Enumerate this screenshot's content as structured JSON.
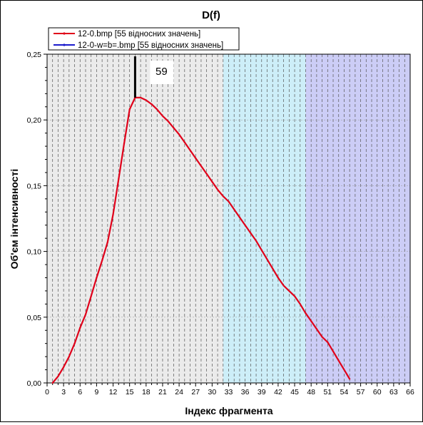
{
  "chart_data": {
    "type": "line",
    "title": "D(f)",
    "xlabel": "Індекс фрагмента",
    "ylabel": "Об'єм інтенсивності",
    "xlim": [
      0,
      66
    ],
    "ylim": [
      0,
      0.25
    ],
    "x_ticks": [
      "0",
      "3",
      "6",
      "9",
      "12",
      "15",
      "18",
      "21",
      "24",
      "27",
      "30",
      "33",
      "36",
      "39",
      "42",
      "45",
      "48",
      "51",
      "54",
      "57",
      "60",
      "63",
      "66"
    ],
    "y_ticks": [
      "0,00",
      "0,05",
      "0,10",
      "0,15",
      "0,20",
      "0,25"
    ],
    "grid": "vertical dashed lines at every integer x",
    "bands": [
      {
        "from": 0,
        "to": 32,
        "color": "#ebebeb"
      },
      {
        "from": 32,
        "to": 47,
        "color": "#cdeef8"
      },
      {
        "from": 47,
        "to": 66,
        "color": "#cccdf6"
      }
    ],
    "legend_position": "top-left",
    "series": [
      {
        "name": "12-0.bmp [55 відносних значень]",
        "color": "#e0001a",
        "x": [
          1,
          2,
          3,
          4,
          5,
          6,
          7,
          8,
          9,
          10,
          11,
          12,
          13,
          14,
          15,
          16,
          17,
          18,
          19,
          20,
          21,
          22,
          23,
          24,
          25,
          26,
          27,
          28,
          29,
          30,
          31,
          32,
          33,
          34,
          35,
          36,
          37,
          38,
          39,
          40,
          41,
          42,
          43,
          44,
          45,
          46,
          47,
          48,
          49,
          50,
          51,
          52,
          53,
          54,
          55
        ],
        "y": [
          0.0,
          0.005,
          0.012,
          0.02,
          0.03,
          0.042,
          0.052,
          0.066,
          0.08,
          0.093,
          0.107,
          0.128,
          0.155,
          0.182,
          0.208,
          0.217,
          0.217,
          0.215,
          0.212,
          0.208,
          0.203,
          0.199,
          0.194,
          0.189,
          0.183,
          0.177,
          0.171,
          0.165,
          0.159,
          0.153,
          0.147,
          0.142,
          0.138,
          0.132,
          0.126,
          0.12,
          0.114,
          0.108,
          0.101,
          0.094,
          0.087,
          0.08,
          0.074,
          0.07,
          0.066,
          0.06,
          0.053,
          0.047,
          0.041,
          0.035,
          0.031,
          0.024,
          0.017,
          0.01,
          0.003
        ]
      },
      {
        "name": "12-0-w=b=.bmp [55 відносних значень]",
        "color": "#1a1acc",
        "x": [],
        "y": []
      }
    ],
    "annotation": {
      "x": 16,
      "label": "59"
    }
  }
}
